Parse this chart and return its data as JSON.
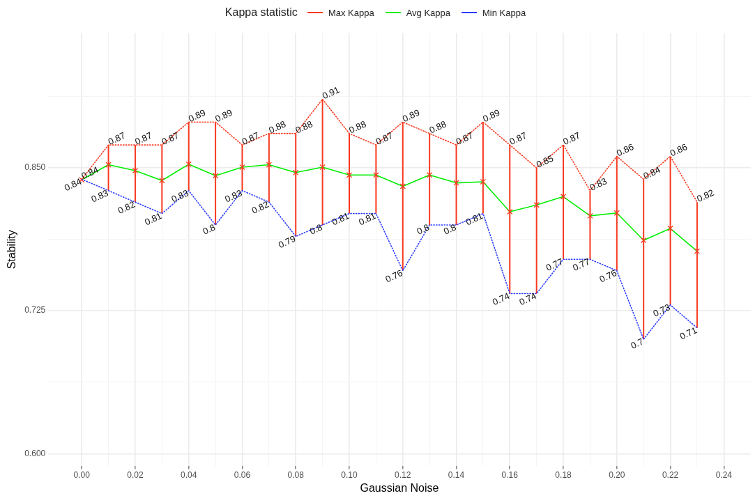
{
  "chart_data": {
    "type": "line",
    "xlabel": "Gaussian Noise",
    "ylabel": "Stability",
    "legend_title": "Kappa statistic",
    "legend": "top",
    "x": [
      0,
      0.01,
      0.02,
      0.03,
      0.04,
      0.05,
      0.06,
      0.07,
      0.08,
      0.09,
      0.1,
      0.11,
      0.12,
      0.13,
      0.14,
      0.15,
      0.16,
      0.17,
      0.18,
      0.19,
      0.2,
      0.21,
      0.22,
      0.23
    ],
    "xlim": [
      -0.0125,
      0.25
    ],
    "xticks": [
      {
        "value": 0,
        "label": "0.00"
      },
      {
        "value": 0.01,
        "label": null
      },
      {
        "value": 0.02,
        "label": "0.02"
      },
      {
        "value": 0.03,
        "label": null
      },
      {
        "value": 0.04,
        "label": "0.04"
      },
      {
        "value": 0.05,
        "label": null
      },
      {
        "value": 0.06,
        "label": "0.06"
      },
      {
        "value": 0.07,
        "label": null
      },
      {
        "value": 0.08,
        "label": "0.08"
      },
      {
        "value": 0.09,
        "label": null
      },
      {
        "value": 0.1,
        "label": "0.10"
      },
      {
        "value": 0.11,
        "label": null
      },
      {
        "value": 0.12,
        "label": "0.12"
      },
      {
        "value": 0.13,
        "label": null
      },
      {
        "value": 0.14,
        "label": "0.14"
      },
      {
        "value": 0.15,
        "label": null
      },
      {
        "value": 0.16,
        "label": "0.16"
      },
      {
        "value": 0.17,
        "label": null
      },
      {
        "value": 0.18,
        "label": "0.18"
      },
      {
        "value": 0.19,
        "label": null
      },
      {
        "value": 0.2,
        "label": "0.20"
      },
      {
        "value": 0.21,
        "label": null
      },
      {
        "value": 0.22,
        "label": "0.22"
      },
      {
        "value": 0.23,
        "label": null
      },
      {
        "value": 0.24,
        "label": "0.24"
      }
    ],
    "ylim": [
      0.589,
      0.968
    ],
    "yticks": [
      {
        "value": 0.6,
        "label": "0.600"
      },
      {
        "value": 0.6625,
        "label": null
      },
      {
        "value": 0.725,
        "label": "0.725"
      },
      {
        "value": 0.7875,
        "label": null
      },
      {
        "value": 0.85,
        "label": "0.850"
      },
      {
        "value": 0.9125,
        "label": null
      }
    ],
    "grid": true,
    "series": [
      {
        "name": "Max Kappa",
        "color": "#f8391f",
        "line_style": "dotted",
        "marker": "none",
        "values": [
          0.84,
          0.87,
          0.87,
          0.87,
          0.89,
          0.89,
          0.87,
          0.88,
          0.88,
          0.91,
          0.88,
          0.87,
          0.89,
          0.88,
          0.87,
          0.89,
          0.87,
          0.85,
          0.87,
          0.83,
          0.86,
          0.84,
          0.86,
          0.82
        ],
        "value_labels": [
          "0.84",
          "0.87",
          "0.87",
          "0.87",
          "0.89",
          "0.89",
          "0.87",
          "0.88",
          "0.88",
          "0.91",
          "0.88",
          "0.87",
          "0.89",
          "0.88",
          "0.87",
          "0.89",
          "0.87",
          "0.85",
          "0.87",
          "0.83",
          "0.86",
          "0.84",
          "0.86",
          "0.82"
        ]
      },
      {
        "name": "Avg Kappa",
        "color": "#00ee00",
        "line_style": "solid",
        "marker": "cross",
        "values": [
          0.8395,
          0.8527,
          0.8475,
          0.8389,
          0.8531,
          0.8431,
          0.8506,
          0.8527,
          0.8458,
          0.8506,
          0.8437,
          0.8437,
          0.8338,
          0.8437,
          0.8368,
          0.8378,
          0.8116,
          0.8175,
          0.8248,
          0.808,
          0.8105,
          0.7866,
          0.7969,
          0.7771
        ],
        "errors": [
          [
            0.84,
            0.84
          ],
          [
            0.83,
            0.87
          ],
          [
            0.82,
            0.87
          ],
          [
            0.81,
            0.87
          ],
          [
            0.83,
            0.89
          ],
          [
            0.8,
            0.89
          ],
          [
            0.83,
            0.87
          ],
          [
            0.82,
            0.88
          ],
          [
            0.79,
            0.88
          ],
          [
            0.8,
            0.91
          ],
          [
            0.81,
            0.88
          ],
          [
            0.81,
            0.87
          ],
          [
            0.76,
            0.89
          ],
          [
            0.8,
            0.88
          ],
          [
            0.8,
            0.87
          ],
          [
            0.81,
            0.89
          ],
          [
            0.74,
            0.87
          ],
          [
            0.74,
            0.85
          ],
          [
            0.77,
            0.87
          ],
          [
            0.77,
            0.83
          ],
          [
            0.76,
            0.86
          ],
          [
            0.7,
            0.84
          ],
          [
            0.73,
            0.86
          ],
          [
            0.71,
            0.82
          ]
        ]
      },
      {
        "name": "Min Kappa",
        "color": "#2b3bff",
        "line_style": "dotted",
        "marker": "none",
        "values": [
          0.84,
          0.83,
          0.82,
          0.81,
          0.83,
          0.8,
          0.83,
          0.82,
          0.79,
          0.8,
          0.81,
          0.81,
          0.76,
          0.8,
          0.8,
          0.81,
          0.74,
          0.74,
          0.77,
          0.77,
          0.76,
          0.7,
          0.73,
          0.71
        ],
        "value_labels": [
          "0.84",
          "0.83",
          "0.82",
          "0.81",
          "0.83",
          "0.8",
          "0.83",
          "0.82",
          "0.79",
          "0.8",
          "0.81",
          "0.81",
          "0.76",
          "0.8",
          "0.8",
          "0.81",
          "0.74",
          "0.74",
          "0.77",
          "0.77",
          "0.76",
          "0.7",
          "0.73",
          "0.71"
        ]
      }
    ]
  }
}
